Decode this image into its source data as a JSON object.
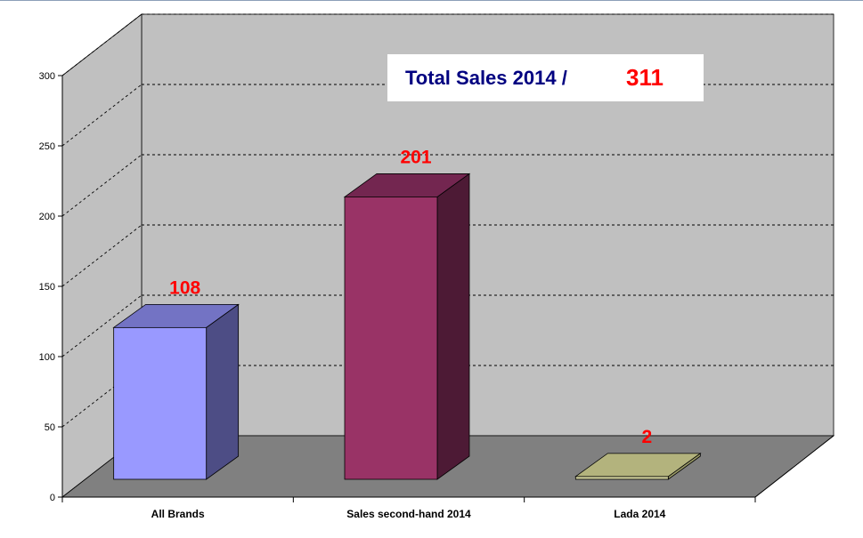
{
  "chart_data": {
    "type": "bar",
    "categories": [
      "All Brands",
      "Sales second-hand 2014",
      "Lada 2014"
    ],
    "values": [
      108,
      201,
      2
    ],
    "ylim": [
      0,
      300
    ],
    "yticks": [
      "0",
      "50",
      "100",
      "150",
      "200",
      "250",
      "300"
    ],
    "grid": true,
    "data_labels": [
      "108",
      "201",
      "2"
    ],
    "annotation": {
      "label": "Total Sales 2014 /",
      "value": "311"
    },
    "bar_colors": [
      {
        "front": "#9999ff",
        "top": "#7373c4",
        "side": "#4d4d85"
      },
      {
        "front": "#993366",
        "top": "#732650",
        "side": "#4d1a35"
      },
      {
        "front": "#cccc99",
        "top": "#b3b37d",
        "side": "#999966"
      }
    ],
    "colors": {
      "back_wall": "#c0c0c0",
      "side_wall": "#c0c0c0",
      "floor": "#808080",
      "data_label": "#ff0000",
      "annotation_label": "#000080",
      "annotation_value": "#ff0000"
    }
  }
}
